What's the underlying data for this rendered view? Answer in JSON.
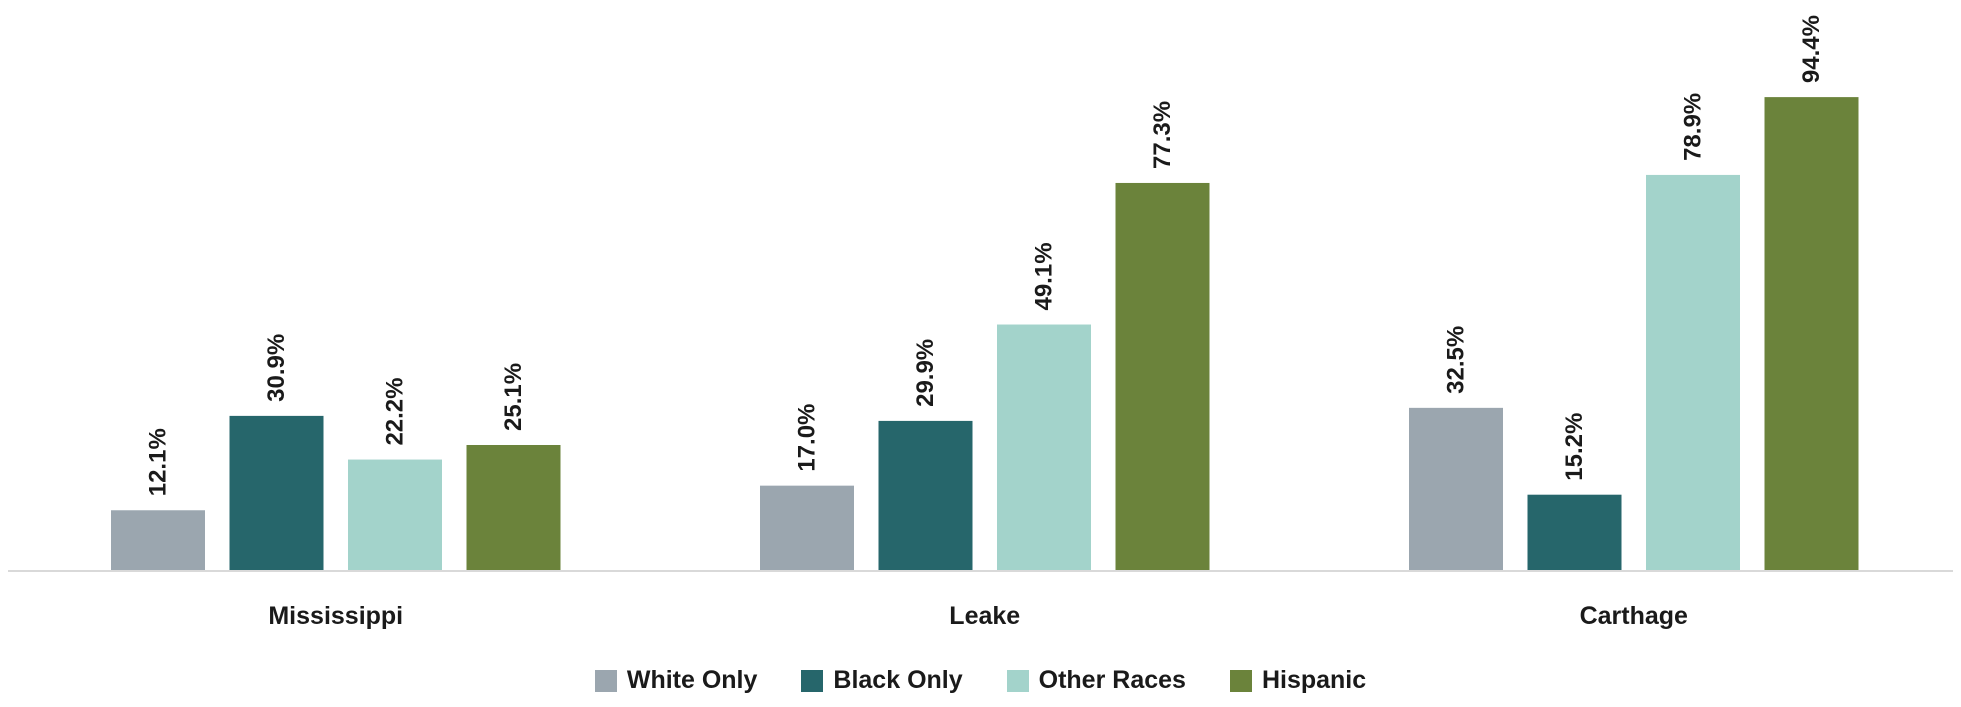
{
  "chart_data": {
    "type": "bar",
    "categories": [
      "Mississippi",
      "Leake",
      "Carthage"
    ],
    "series": [
      {
        "name": "White Only",
        "color": "#9BA6AF",
        "values": [
          12.1,
          17.0,
          32.5
        ],
        "labels": [
          "12.1%",
          "17.0%",
          "32.5%"
        ]
      },
      {
        "name": "Black Only",
        "color": "#26666B",
        "values": [
          30.9,
          29.9,
          15.2
        ],
        "labels": [
          "30.9%",
          "29.9%",
          "15.2%"
        ]
      },
      {
        "name": "Other Races",
        "color": "#A3D3CB",
        "values": [
          22.2,
          49.1,
          78.9
        ],
        "labels": [
          "22.2%",
          "49.1%",
          "78.9%"
        ]
      },
      {
        "name": "Hispanic",
        "color": "#6B833B",
        "values": [
          25.1,
          77.3,
          94.4
        ],
        "labels": [
          "25.1%",
          "77.3%",
          "94.4%"
        ]
      }
    ],
    "ylim": [
      0,
      100
    ],
    "grid": false,
    "legend_position": "bottom"
  }
}
